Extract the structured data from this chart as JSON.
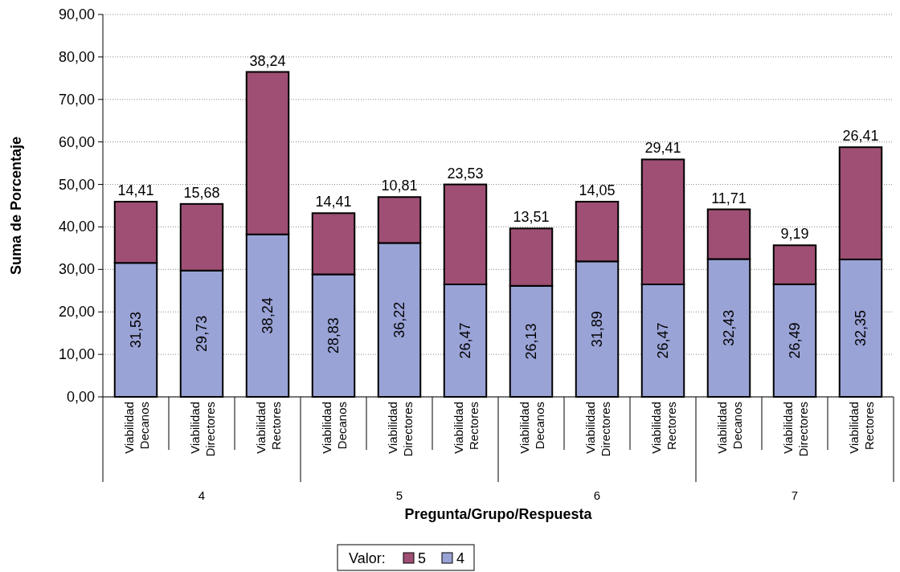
{
  "chart_data": {
    "type": "bar",
    "stacked": true,
    "xlabel": "Pregunta/Grupo/Respuesta",
    "ylabel": "Suma de Porcentaje",
    "legend_title": "Valor:",
    "categories": [
      "Viabilidad Decanos",
      "Viabilidad Directores",
      "Viabilidad Rectores",
      "Viabilidad Decanos",
      "Viabilidad Directores",
      "Viabilidad Rectores",
      "Viabilidad Decanos",
      "Viabilidad Directores",
      "Viabilidad Rectores",
      "Viabilidad Decanos",
      "Viabilidad Directores",
      "Viabilidad Rectores"
    ],
    "annotations": [
      "4",
      "5",
      "6",
      "7"
    ],
    "series": [
      {
        "name": "4",
        "color": "#9aa3d6",
        "values": [
          31.53,
          29.73,
          38.24,
          28.83,
          36.22,
          26.47,
          26.13,
          31.89,
          26.47,
          32.43,
          26.49,
          32.35
        ],
        "value_labels": [
          "31,53",
          "29,73",
          "38,24",
          "28,83",
          "36,22",
          "26,47",
          "26,13",
          "31,89",
          "26,47",
          "32,43",
          "26,49",
          "32,35"
        ]
      },
      {
        "name": "5",
        "color": "#9e4f73",
        "values": [
          14.41,
          15.68,
          38.24,
          14.41,
          10.81,
          23.53,
          13.51,
          14.05,
          29.41,
          11.71,
          9.19,
          26.41
        ],
        "value_labels": [
          "14,41",
          "15,68",
          "38,24",
          "14,41",
          "10,81",
          "23,53",
          "13,51",
          "14,05",
          "29,41",
          "11,71",
          "9,19",
          "26,41"
        ]
      }
    ],
    "ylim": [
      0,
      90
    ],
    "yticks": [
      {
        "value": 0,
        "label": "0,00"
      },
      {
        "value": 10,
        "label": "10,00"
      },
      {
        "value": 20,
        "label": "20,00"
      },
      {
        "value": 30,
        "label": "30,00"
      },
      {
        "value": 40,
        "label": "40,00"
      },
      {
        "value": 50,
        "label": "50,00"
      },
      {
        "value": 60,
        "label": "60,00"
      },
      {
        "value": 70,
        "label": "70,00"
      },
      {
        "value": 80,
        "label": "80,00"
      },
      {
        "value": 90,
        "label": "90,00"
      }
    ],
    "grid": "y",
    "legend": "bottom"
  }
}
